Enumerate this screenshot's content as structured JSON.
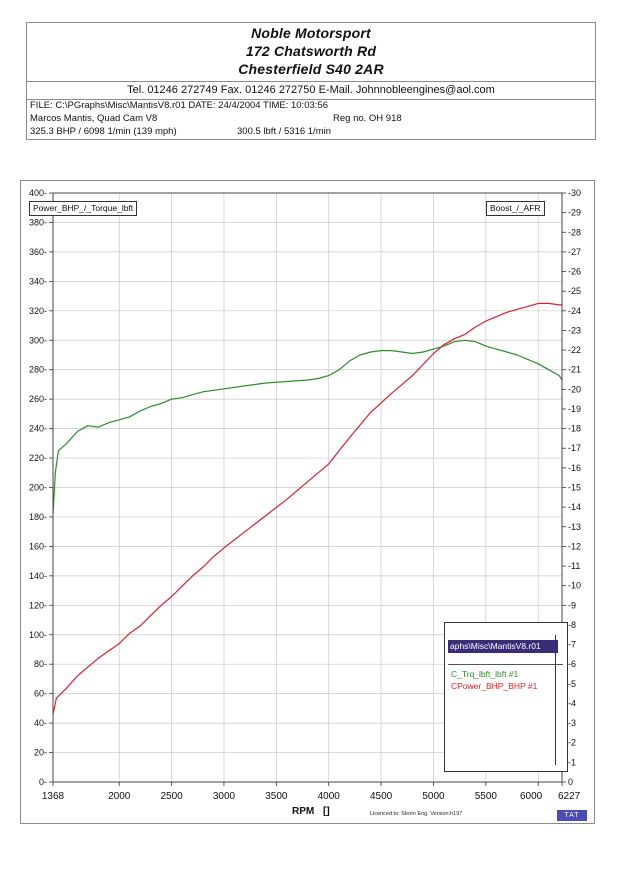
{
  "header": {
    "company": "Noble Motorsport",
    "address1": "172 Chatsworth Rd",
    "address2": "Chesterfield S40 2AR",
    "contact": "Tel. 01246 272749    Fax. 01246 272750  E-Mail. Johnnobleengines@aol.com",
    "file_line": "FILE: C:\\PGraphs\\Misc\\MantisV8.r01  DATE: 24/4/2004  TIME: 10:03:56",
    "vehicle": "Marcos Mantis, Quad Cam V8",
    "reg": "Reg no. OH 918",
    "peak_power": "325.3 BHP / 6098 1/min (139 mph)",
    "peak_torque": "300.5 lbft / 5316 1/min"
  },
  "chart_data": {
    "type": "line",
    "xlabel": "RPM",
    "xlabel_suffix": "[]",
    "x_ticks": [
      1368,
      2000,
      2500,
      3000,
      3500,
      4000,
      4500,
      5000,
      5500,
      6000,
      6227
    ],
    "x_tick_labels": [
      "1368",
      "2000",
      "2500",
      "3000",
      "3500",
      "4000",
      "4500",
      "5000",
      "5500",
      "6000",
      "6227"
    ],
    "xlim": [
      1368,
      6227
    ],
    "left_axis": {
      "label": "Power_BHP_/_Torque_lbft",
      "ylim": [
        0,
        400
      ],
      "ticks": [
        0,
        20,
        40,
        60,
        80,
        100,
        120,
        140,
        160,
        180,
        200,
        220,
        240,
        260,
        280,
        300,
        320,
        340,
        360,
        380,
        400
      ]
    },
    "right_axis": {
      "label": "Boost_/_AFR",
      "ylim": [
        0,
        -30
      ],
      "ticks": [
        0,
        -1,
        -2,
        -3,
        -4,
        -5,
        -6,
        -7,
        -8,
        -9,
        -10,
        -11,
        -12,
        -13,
        -14,
        -15,
        -16,
        -17,
        -18,
        -19,
        -20,
        -21,
        -22,
        -23,
        -24,
        -25,
        -26,
        -27,
        -28,
        -29,
        -30
      ]
    },
    "grid": true,
    "legend_position": "bottom-right",
    "legend_title": "aphs\\Misc\\MantisV8.r01",
    "series": [
      {
        "name": "C_Trq_lbft_lbft #1",
        "color": "#2e8b2e",
        "x": [
          1368,
          1390,
          1420,
          1500,
          1600,
          1700,
          1800,
          1900,
          2000,
          2100,
          2200,
          2300,
          2400,
          2500,
          2600,
          2700,
          2800,
          2900,
          3000,
          3200,
          3400,
          3600,
          3800,
          3900,
          4000,
          4100,
          4200,
          4300,
          4400,
          4500,
          4600,
          4700,
          4800,
          4900,
          5000,
          5100,
          5200,
          5300,
          5400,
          5500,
          5600,
          5700,
          5800,
          5900,
          6000,
          6100,
          6200,
          6227
        ],
        "y": [
          182,
          210,
          225,
          230,
          238,
          242,
          241,
          244,
          246,
          248,
          252,
          255,
          257,
          260,
          261,
          263,
          265,
          266,
          267,
          269,
          271,
          272,
          273,
          274,
          276,
          280,
          286,
          290,
          292,
          293,
          293,
          292,
          291,
          292,
          294,
          296,
          299,
          300,
          299,
          296,
          294,
          292,
          290,
          287,
          284,
          280,
          276,
          273
        ]
      },
      {
        "name": "CPower_BHP_BHP #1",
        "color": "#e0202a",
        "x": [
          1368,
          1400,
          1500,
          1600,
          1700,
          1800,
          1900,
          2000,
          2100,
          2200,
          2300,
          2400,
          2500,
          2600,
          2700,
          2800,
          2900,
          3000,
          3200,
          3400,
          3600,
          3800,
          4000,
          4200,
          4400,
          4600,
          4800,
          5000,
          5100,
          5200,
          5300,
          5400,
          5500,
          5600,
          5700,
          5800,
          5900,
          6000,
          6100,
          6200,
          6227
        ],
        "y": [
          46,
          57,
          64,
          72,
          78,
          84,
          89,
          94,
          101,
          106,
          113,
          120,
          126,
          133,
          140,
          146,
          153,
          159,
          170,
          181,
          192,
          204,
          216,
          234,
          251,
          264,
          276,
          291,
          297,
          301,
          304,
          309,
          313,
          316,
          319,
          321,
          323,
          325,
          325,
          324,
          324
        ]
      }
    ]
  },
  "footer": {
    "license": "Licenced to: Storm Eng.  Version:h197",
    "badge": "TAT"
  }
}
